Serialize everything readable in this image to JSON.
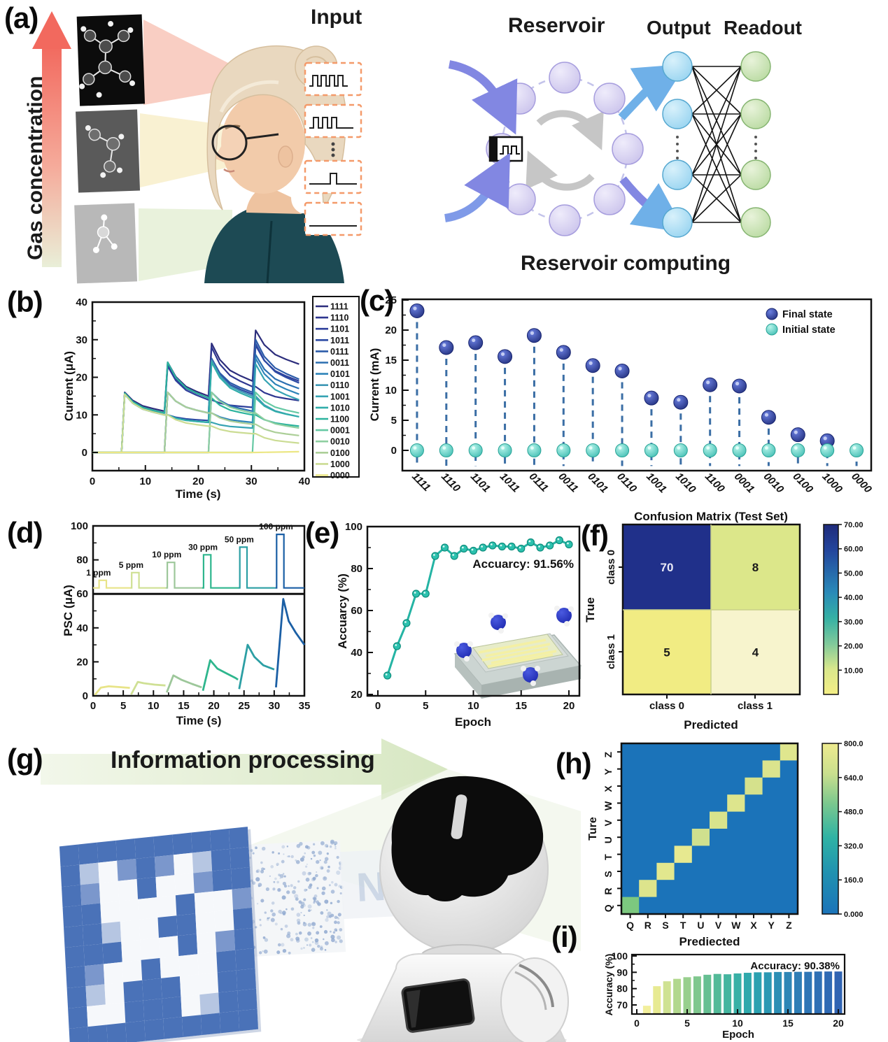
{
  "figure": {
    "panel_labels": {
      "a": "(a)",
      "b": "(b)",
      "c": "(c)",
      "d": "(d)",
      "e": "(e)",
      "f": "(f)",
      "g": "(g)",
      "h": "(h)",
      "i": "(i)"
    },
    "panel_a": {
      "gas_label": "Gas concentration",
      "input_label": "Input",
      "reservoir_label": "Reservoir",
      "output_label": "Output",
      "readout_label": "Readout",
      "caption": "Reservoir computing"
    },
    "panel_g": {
      "heading": "Information processing",
      "mosaic_colors": {
        "B": "#4a72b8",
        "b": "#7b97cc",
        "l": "#b6c6e2",
        "W": "#f6f8fb"
      },
      "mosaic_pattern": [
        "BBBBBBBBBB",
        "BlWbBbWlBB",
        "BbWWBWWbBB",
        "BBWWWWBWWb",
        "BBlWWBBWWB",
        "BBBWWWBWbB",
        "BbWWBWWWBB",
        "BlWBBBWWBB",
        "BWWBBBWlBB",
        "BBBBBBBBBB"
      ]
    },
    "panel_b": {
      "chart_data": {
        "type": "line",
        "xlabel": "Time (s)",
        "ylabel": "Current (μA)",
        "xlim": [
          0,
          40
        ],
        "ylim": [
          -5,
          40
        ],
        "xticks": [
          0,
          10,
          20,
          30,
          40
        ],
        "yticks": [
          0,
          10,
          20,
          30,
          40
        ],
        "times": [
          0,
          5.5,
          6.1,
          13.6,
          14.2,
          21.9,
          22.5,
          30.2,
          30.8,
          39
        ],
        "series": [
          {
            "name": "1111",
            "color": "#2c2d7c",
            "values": [
              0,
              0,
              16,
              11,
              24,
              15,
              29,
              19,
              32.5,
              23.5
            ]
          },
          {
            "name": "1110",
            "color": "#2e3690",
            "values": [
              0,
              0,
              15.8,
              10.5,
              23.5,
              14.5,
              28,
              17.5,
              17.5,
              13.8
            ]
          },
          {
            "name": "1101",
            "color": "#2e3f9b",
            "values": [
              0,
              0,
              15.8,
              10.5,
              23,
              14,
              14,
              12,
              28.5,
              19
            ]
          },
          {
            "name": "1011",
            "color": "#2c4aa4",
            "values": [
              0,
              0,
              15.5,
              10,
              10,
              8.5,
              24.5,
              15.5,
              29,
              18.5
            ]
          },
          {
            "name": "0111",
            "color": "#2c5ba9",
            "values": [
              0,
              0,
              0,
              0,
              16,
              10.5,
              25,
              16,
              30,
              19.5
            ]
          },
          {
            "name": "0011",
            "color": "#2b6fb1",
            "values": [
              0,
              0,
              0,
              0,
              0,
              0,
              16,
              11,
              26,
              17
            ]
          },
          {
            "name": "0101",
            "color": "#2e84b9",
            "values": [
              0,
              0,
              0,
              0,
              16,
              10.5,
              10.5,
              8,
              25,
              15.5
            ]
          },
          {
            "name": "0110",
            "color": "#3f97b5",
            "values": [
              0,
              0,
              0,
              0,
              16,
              10.5,
              24.5,
              15,
              15,
              9.5
            ]
          },
          {
            "name": "1001",
            "color": "#36a3b3",
            "values": [
              0,
              0,
              15.5,
              10,
              10,
              8,
              8,
              6.5,
              23.5,
              14
            ]
          },
          {
            "name": "1010",
            "color": "#30adaa",
            "values": [
              0,
              0,
              15.5,
              10,
              10,
              8,
              24,
              14.5,
              14.5,
              9.5
            ]
          },
          {
            "name": "1100",
            "color": "#2bb39d",
            "values": [
              0,
              0,
              15.8,
              10.5,
              24,
              14.5,
              14.5,
              10,
              10,
              7
            ]
          },
          {
            "name": "0001",
            "color": "#66c9a4",
            "values": [
              0,
              0,
              0,
              0,
              0,
              0,
              0,
              0,
              16,
              10.5
            ]
          },
          {
            "name": "0010",
            "color": "#8ecfa0",
            "values": [
              0,
              0,
              0,
              0,
              0,
              0,
              16,
              10.5,
              10.5,
              6.5
            ]
          },
          {
            "name": "0100",
            "color": "#accf98",
            "values": [
              0,
              0,
              0,
              0,
              16,
              10.5,
              10.5,
              7.5,
              7.5,
              4.5
            ]
          },
          {
            "name": "1000",
            "color": "#cbdc93",
            "values": [
              0,
              0,
              15.5,
              10,
              10,
              7,
              7,
              5,
              5,
              2.5
            ]
          },
          {
            "name": "0000",
            "color": "#ece785",
            "values": [
              0,
              0,
              0,
              0,
              0,
              0,
              0,
              0,
              0,
              0.2
            ]
          }
        ]
      }
    },
    "panel_c": {
      "chart_data": {
        "type": "stem",
        "ylabel": "Current (mA)",
        "ylim": [
          -3,
          25
        ],
        "yticks": [
          0,
          5,
          10,
          15,
          20,
          25
        ],
        "categories": [
          "1111",
          "1110",
          "1101",
          "1011",
          "0111",
          "0011",
          "0101",
          "0110",
          "1001",
          "1010",
          "1100",
          "0001",
          "0010",
          "0100",
          "1000",
          "0000"
        ],
        "final_values": [
          23.2,
          17.1,
          17.9,
          15.6,
          19.1,
          16.3,
          14.1,
          13.2,
          8.7,
          8,
          10.9,
          10.7,
          5.5,
          2.6,
          1.6,
          null
        ],
        "initial_values": [
          0,
          0,
          0,
          0,
          0,
          0,
          0,
          0,
          0,
          0,
          0,
          0,
          0,
          0,
          0,
          0
        ],
        "legend": {
          "final": "Final state",
          "initial": "Initial state"
        },
        "colors": {
          "final": "#1b2a86",
          "initial": "#3fc3b6",
          "stem": "#3b6ea5"
        }
      }
    },
    "panel_d": {
      "chart_data": {
        "type": "pulse-response",
        "xlabel": "Time (s)",
        "ylabel": "PSC (μA)",
        "xlim": [
          0,
          35
        ],
        "ylim": [
          0,
          100
        ],
        "divider": 60,
        "baseline": 63.5,
        "xticks": [
          0,
          5,
          10,
          15,
          20,
          25,
          30,
          35
        ],
        "yticks": [
          0,
          20,
          40,
          60,
          80,
          100
        ],
        "boundaries": [
          0,
          6.2,
          12.05,
          18.05,
          24.05,
          30.2,
          35
        ],
        "pulses": [
          {
            "label": "1 ppm",
            "ppm": 1,
            "window": [
              1,
              2.2
            ],
            "high": 68,
            "color": "#e8e488"
          },
          {
            "label": "5 ppm",
            "ppm": 5,
            "window": [
              6.4,
              7.6
            ],
            "high": 72.5,
            "color": "#cfe094"
          },
          {
            "label": "10 ppm",
            "ppm": 10,
            "window": [
              12.3,
              13.5
            ],
            "high": 78.5,
            "color": "#9dc79a"
          },
          {
            "label": "30 ppm",
            "ppm": 30,
            "window": [
              18.3,
              19.5
            ],
            "high": 83,
            "color": "#2eb68d"
          },
          {
            "label": "50 ppm",
            "ppm": 50,
            "window": [
              24.3,
              25.5
            ],
            "high": 87.5,
            "color": "#2c9fa4"
          },
          {
            "label": "100 ppm",
            "ppm": 100,
            "window": [
              30.4,
              31.6
            ],
            "high": 95,
            "color": "#1b5fa5"
          }
        ],
        "responses": [
          {
            "color": "#e8e488",
            "points": [
              [
                0.3,
                0.5
              ],
              [
                1.3,
                4.8
              ],
              [
                2.6,
                5.6
              ],
              [
                4.2,
                5.2
              ],
              [
                6.1,
                4.7
              ]
            ]
          },
          {
            "color": "#cfe094",
            "points": [
              [
                6.3,
                0.8
              ],
              [
                7.4,
                8.2
              ],
              [
                8.4,
                7.4
              ],
              [
                10.2,
                6.6
              ],
              [
                12,
                6.1
              ]
            ]
          },
          {
            "color": "#9dc79a",
            "points": [
              [
                12.2,
                2
              ],
              [
                13.3,
                12
              ],
              [
                14.6,
                9.5
              ],
              [
                16.4,
                7
              ],
              [
                18,
                5
              ]
            ]
          },
          {
            "color": "#2eb68d",
            "points": [
              [
                18.2,
                3
              ],
              [
                19.4,
                21
              ],
              [
                20.6,
                16
              ],
              [
                22.2,
                13
              ],
              [
                23.6,
                10.5
              ],
              [
                24,
                9.5
              ]
            ]
          },
          {
            "color": "#2c9fa4",
            "points": [
              [
                24.2,
                4
              ],
              [
                25.6,
                30
              ],
              [
                26.7,
                23
              ],
              [
                28.2,
                18
              ],
              [
                30,
                15.5
              ]
            ]
          },
          {
            "color": "#1b5fa5",
            "points": [
              [
                30.3,
                5
              ],
              [
                31.5,
                57
              ],
              [
                32.4,
                44
              ],
              [
                33.6,
                37
              ],
              [
                35,
                30
              ]
            ]
          }
        ]
      }
    },
    "panel_e": {
      "chart_data": {
        "type": "line-markers",
        "xlabel": "Epoch",
        "ylabel": "Accuarcy (%)",
        "annotation": "Accuarcy: 91.56%",
        "xlim": [
          0,
          20
        ],
        "ylim": [
          20,
          100
        ],
        "xticks": [
          0,
          5,
          10,
          15,
          20
        ],
        "yticks": [
          20,
          40,
          60,
          80,
          100
        ],
        "epochs": [
          1,
          2,
          3,
          4,
          5,
          6,
          7,
          8,
          9,
          10,
          11,
          12,
          13,
          14,
          15,
          16,
          17,
          18,
          19,
          20
        ],
        "values": [
          29,
          43,
          54,
          68,
          68,
          86,
          90,
          86,
          89.5,
          88.5,
          90,
          91,
          90.5,
          90.5,
          89.5,
          92.5,
          90,
          91,
          93.5,
          91.5
        ],
        "color": "#25b4a4"
      }
    },
    "panel_f": {
      "chart_data": {
        "type": "heatmap",
        "title": "Confusion Matrix (Test Set)",
        "xlabel": "Predicted",
        "ylabel": "True",
        "row_labels": [
          "class 0",
          "class 1"
        ],
        "col_labels": [
          "class 0",
          "class 1"
        ],
        "values": [
          [
            70,
            8
          ],
          [
            5,
            4
          ]
        ],
        "cell_colors": [
          [
            "#20308a",
            "#dce78a"
          ],
          [
            "#f1ec83",
            "#f7f4cd"
          ]
        ],
        "text_colors": [
          [
            "#e9e9f6",
            "#1a1a1a"
          ],
          [
            "#1a1a1a",
            "#1a1a1a"
          ]
        ],
        "colorbar": {
          "min": 0,
          "max": 70,
          "tick_values": [
            70,
            60,
            50,
            40,
            30,
            20,
            10
          ],
          "tick_labels": [
            "70.00",
            "60.00",
            "50.00",
            "40.00",
            "30.00",
            "20.00",
            "10.00"
          ]
        }
      }
    },
    "panel_h": {
      "chart_data": {
        "type": "heatmap-diagonal",
        "xlabel": "Prediected",
        "ylabel": "Ture",
        "letters": [
          "Q",
          "R",
          "S",
          "T",
          "U",
          "V",
          "W",
          "X",
          "Y",
          "Z"
        ],
        "diagonal_values": [
          500,
          720,
          750,
          770,
          640,
          690,
          710,
          680,
          700,
          710
        ],
        "diagonal_colors": [
          "#7cc87f",
          "#dde48c",
          "#e2e78e",
          "#e7e990",
          "#cfe08e",
          "#d8e38c",
          "#dde58d",
          "#d5e18c",
          "#dbe48d",
          "#dfe68e"
        ],
        "background": "#1b73b9",
        "colorbar": {
          "min": 0,
          "max": 800,
          "tick_values": [
            800,
            640,
            480,
            320,
            160,
            0
          ],
          "tick_labels": [
            "800.0",
            "640.0",
            "480.0",
            "320.0",
            "160.0",
            "0.000"
          ]
        }
      }
    },
    "panel_i": {
      "chart_data": {
        "type": "bar",
        "xlabel": "Epoch",
        "ylabel": "Accuracy (%)",
        "annotation": "Accuracy: 90.38%",
        "ylim": [
          64,
          100
        ],
        "yticks": [
          70,
          80,
          90,
          100
        ],
        "xticks": [
          0,
          5,
          10,
          15,
          20
        ],
        "epochs": [
          1,
          2,
          3,
          4,
          5,
          6,
          7,
          8,
          9,
          10,
          11,
          12,
          13,
          14,
          15,
          16,
          17,
          18,
          19,
          20
        ],
        "values": [
          69.5,
          81.5,
          84.5,
          86,
          87,
          87.5,
          88.5,
          89,
          88.8,
          89.3,
          89.7,
          90,
          90,
          90.2,
          90.2,
          90.3,
          90.3,
          90.5,
          90.5,
          90.5
        ],
        "colors": [
          "#f2ef9c",
          "#e7ea92",
          "#cfe292",
          "#b2d88e",
          "#98cf8d",
          "#7fc78e",
          "#66bf92",
          "#53ba98",
          "#44b59f",
          "#38b0a6",
          "#2fa9ac",
          "#2ba1b0",
          "#2b98b3",
          "#2c8fb5",
          "#2d86b6",
          "#2e7eb6",
          "#2e76b6",
          "#2f70b5",
          "#2f6ab4",
          "#3064b3"
        ]
      }
    }
  }
}
